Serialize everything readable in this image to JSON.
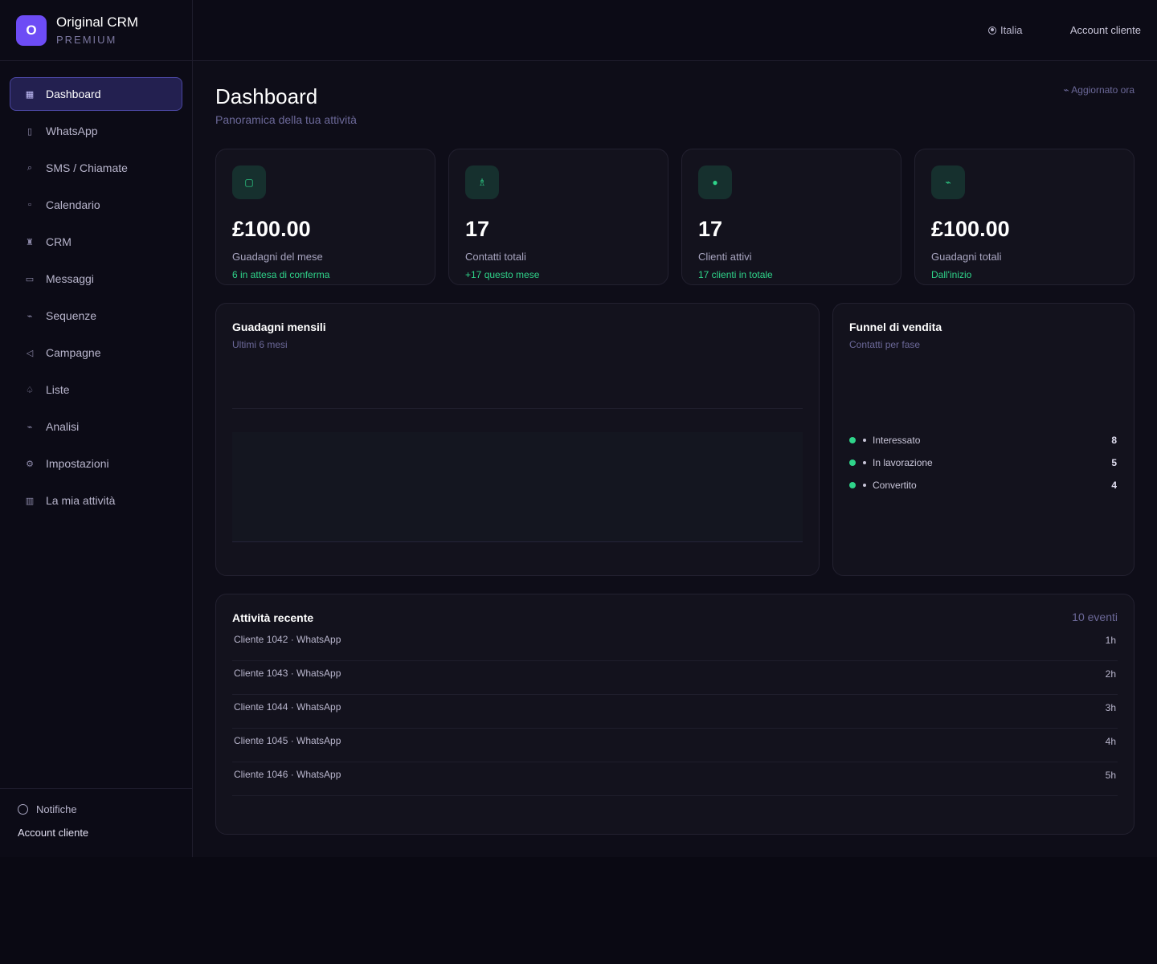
{
  "brand": {
    "logo_letter": "O",
    "name": "Original CRM",
    "tier": "PREMIUM"
  },
  "nav": [
    {
      "label": "Dashboard",
      "icon": "grid-icon",
      "glyph": "▦",
      "active": true
    },
    {
      "label": "WhatsApp",
      "icon": "phone-icon",
      "glyph": "▯"
    },
    {
      "label": "SMS / Chiamate",
      "icon": "search-icon",
      "glyph": "⌕"
    },
    {
      "label": "Calendario",
      "icon": "calendar-icon",
      "glyph": "▫"
    },
    {
      "label": "CRM",
      "icon": "user-icon",
      "glyph": "♜"
    },
    {
      "label": "Messaggi",
      "icon": "message-icon",
      "glyph": "▭"
    },
    {
      "label": "Sequenze",
      "icon": "sequence-icon",
      "glyph": "⌁"
    },
    {
      "label": "Campagne",
      "icon": "send-icon",
      "glyph": "◁"
    },
    {
      "label": "Liste",
      "icon": "list-icon",
      "glyph": "♤"
    },
    {
      "label": "Analisi",
      "icon": "analytics-icon",
      "glyph": "⌁"
    },
    {
      "label": "Impostazioni",
      "icon": "gear-icon",
      "glyph": "⚙"
    },
    {
      "label": "La mia attività",
      "icon": "building-icon",
      "glyph": "▥"
    }
  ],
  "sidebar_bottom": {
    "notifications": "Notifiche",
    "account": "Account cliente"
  },
  "header": {
    "country": "Italia",
    "account": "Account cliente"
  },
  "page": {
    "title": "Dashboard",
    "subtitle": "Panoramica della tua attività",
    "updated": "⌁ Aggiornato ora"
  },
  "kpis": [
    {
      "icon": "wallet-icon",
      "glyph": "▢",
      "value": "£100.00",
      "label": "Guadagni del mese",
      "note": "6 in attesa di conferma"
    },
    {
      "icon": "contacts-icon",
      "glyph": "♗",
      "value": "17",
      "label": "Contatti totali",
      "note": "+17 questo mese"
    },
    {
      "icon": "active-dot-icon",
      "glyph": "●",
      "value": "17",
      "label": "Clienti attivi",
      "note": "17 clienti in totale"
    },
    {
      "icon": "trend-icon",
      "glyph": "⌁",
      "value": "£100.00",
      "label": "Guadagni totali",
      "note": "Dall'inizio"
    }
  ],
  "earnings_chart": {
    "title": "Guadagni mensili",
    "subtitle": "Ultimi 6 mesi"
  },
  "funnel": {
    "title": "Funnel di vendita",
    "subtitle": "Contatti per fase",
    "stages": [
      {
        "label": "Interessato",
        "value": "8"
      },
      {
        "label": "In lavorazione",
        "value": "5"
      },
      {
        "label": "Convertito",
        "value": "4"
      }
    ]
  },
  "activity": {
    "title": "Attività recente",
    "count": "10 eventi",
    "items": [
      {
        "text": "Cliente 1042 · WhatsApp",
        "time": "1h"
      },
      {
        "text": "Cliente 1043 · WhatsApp",
        "time": "2h"
      },
      {
        "text": "Cliente 1044 · WhatsApp",
        "time": "3h"
      },
      {
        "text": "Cliente 1045 · WhatsApp",
        "time": "4h"
      },
      {
        "text": "Cliente 1046 · WhatsApp",
        "time": "5h"
      }
    ]
  },
  "colors": {
    "accent": "#6d4cf5",
    "positive": "#2fd48a",
    "background": "#0e0d18"
  }
}
